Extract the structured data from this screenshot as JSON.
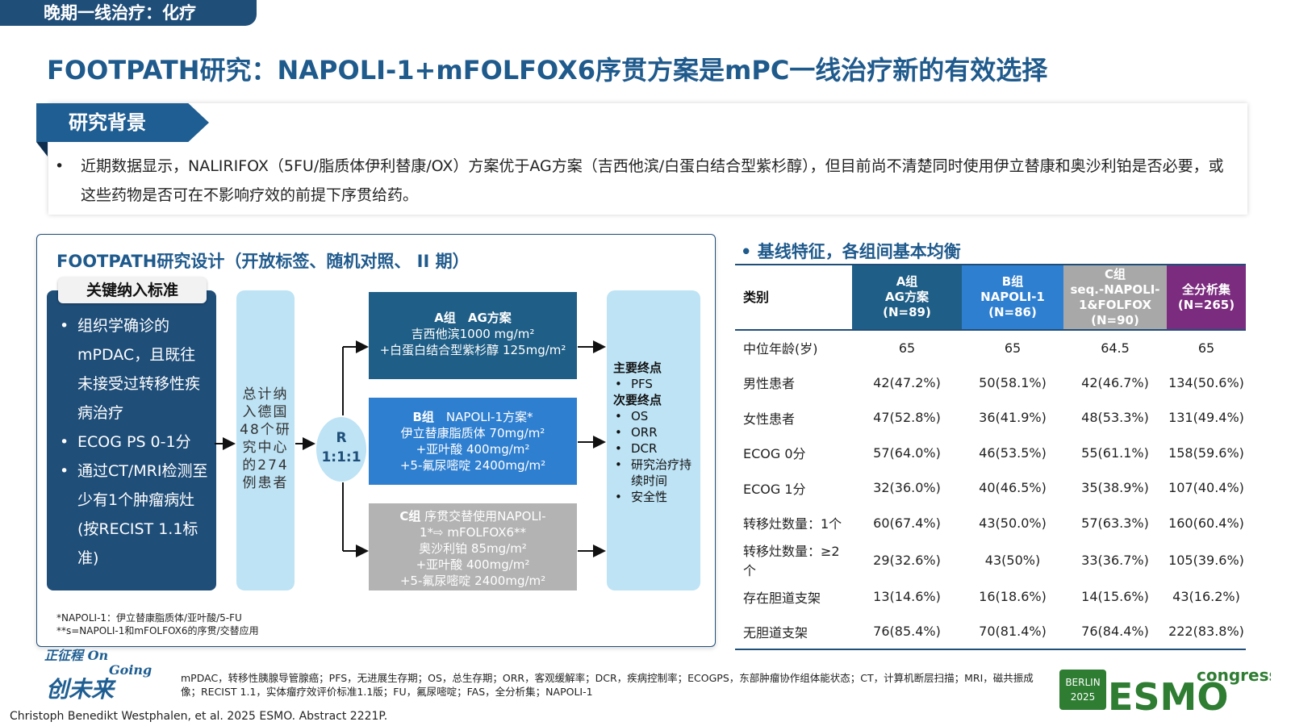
{
  "header": {
    "tag": "晚期一线治疗：化疗"
  },
  "title": "FOOTPATH研究：NAPOLI-1+mFOLFOX6序贯方案是mPC一线治疗新的有效选择",
  "background": {
    "heading": "研究背景",
    "bullet": "•",
    "text": "近期数据显示，NALIRIFOX（5FU/脂质体伊利替康/OX）方案优于AG方案（吉西他滨/白蛋白结合型紫杉醇），但目前尚不清楚同时使用伊立替康和奥沙利铂是否必要，或这些药物是否可在不影响疗效的前提下序贯给药。"
  },
  "design": {
    "title": "FOOTPATH研究设计（开放标签、随机对照、 II 期）",
    "criteria_heading": "关键纳入标准",
    "criteria": [
      "组织学确诊的mPDAC，且既往未接受过转移性疾病治疗",
      "ECOG PS 0-1分",
      "通过CT/MRI检测至少有1个肿瘤病灶(按RECIST 1.1标准)"
    ],
    "enrollment": "总计纳入德国48个研究中心的274例患者",
    "randomization": {
      "r": "R",
      "ratio": "1:1:1"
    },
    "group_a": {
      "head": "A组　AG方案",
      "lines": [
        "吉西他滨1000 mg/m²",
        "+白蛋白结合型紫杉醇 125mg/m²"
      ]
    },
    "group_b": {
      "head": "B组",
      "head_rest": "　NAPOLI-1方案*",
      "lines": [
        "伊立替康脂质体 70mg/m²",
        "+亚叶酸 400mg/m²",
        "+5-氟尿嘧啶 2400mg/m²"
      ]
    },
    "group_c": {
      "head": "C组",
      "head_rest": "  序贯交替使用NAPOLI-",
      "line2": "1*⇨ mFOLFOX6**",
      "lines": [
        "奥沙利铂 85mg/m²",
        "+亚叶酸 400mg/m²",
        "+5-氟尿嘧啶 2400mg/m²"
      ]
    },
    "endpoints": {
      "primary_heading": "主要终点",
      "primary": [
        "PFS"
      ],
      "secondary_heading": "次要终点",
      "secondary": [
        "OS",
        "ORR",
        "DCR",
        "研究治疗持续时间",
        "安全性"
      ]
    },
    "notes": [
      "*NAPOLI-1：伊立替康脂质体/亚叶酸/5-FU",
      "**s=NAPOLI-1和mFOLFOX6的序贯/交替应用"
    ]
  },
  "baseline": {
    "title": "•  基线特征，各组间基本均衡",
    "header_category": "类别",
    "columns": [
      {
        "lines": [
          "A组",
          "AG方案",
          "(N=89)"
        ],
        "color": "#1f5e86"
      },
      {
        "lines": [
          "B组",
          "NAPOLI-1",
          "(N=86)"
        ],
        "color": "#2f7fd0"
      },
      {
        "lines": [
          "C组",
          "seq.-NAPOLI-",
          "1&FOLFOX",
          "(N=90)"
        ],
        "color": "#a8a8a8"
      },
      {
        "lines": [
          "全分析集",
          "(N=265)"
        ],
        "color": "#7b2c7e"
      }
    ],
    "rows": [
      {
        "label": "中位年龄(岁)",
        "values": [
          "65",
          "65",
          "64.5",
          "65"
        ]
      },
      {
        "label": "男性患者",
        "values": [
          "42(47.2%)",
          "50(58.1%)",
          "42(46.7%)",
          "134(50.6%)"
        ]
      },
      {
        "label": "女性患者",
        "values": [
          "47(52.8%)",
          "36(41.9%)",
          "48(53.3%)",
          "131(49.4%)"
        ]
      },
      {
        "label": "ECOG 0分",
        "values": [
          "57(64.0%)",
          "46(53.5%)",
          "55(61.1%)",
          "158(59.6%)"
        ]
      },
      {
        "label": "ECOG 1分",
        "values": [
          "32(36.0%)",
          "40(46.5%)",
          "35(38.9%)",
          "107(40.4%)"
        ]
      },
      {
        "label": "转移灶数量：1个",
        "values": [
          "60(67.4%)",
          "43(50.0%)",
          "57(63.3%)",
          "160(60.4%)"
        ]
      },
      {
        "label": "转移灶数量：≥2个",
        "values": [
          "29(32.6%)",
          "43(50%)",
          "33(36.7%)",
          "105(39.6%)"
        ]
      },
      {
        "label": "存在胆道支架",
        "values": [
          "13(14.6%)",
          "16(18.6%)",
          "14(15.6%)",
          "43(16.2%)"
        ]
      },
      {
        "label": "无胆道支架",
        "values": [
          "76(85.4%)",
          "70(81.4%)",
          "76(84.4%)",
          "222(83.8%)"
        ]
      }
    ]
  },
  "footnote": "mPDAC，转移性胰腺导管腺癌；PFS，无进展生存期；OS，总生存期；ORR，客观缓解率；DCR，疾病控制率；ECOGPS，东部肿瘤协作组体能状态；CT，计算机断层扫描；MRI，磁共振成像；RECIST 1.1，实体瘤疗效评价标准1.1版；FU，氟尿嘧啶；FAS，全分析集；NAPOLI-1",
  "citation": "Christoph Benedikt Westphalen, et al. 2025 ESMO. Abstract 2221P.",
  "logo_left": {
    "line1": "正征程 On",
    "line2": "Going",
    "line3": "创未来"
  },
  "logo_esmo": {
    "city": "BERLIN",
    "year": "2025",
    "brand": "ESMO",
    "word": "congress",
    "color": "#2e7d32"
  }
}
